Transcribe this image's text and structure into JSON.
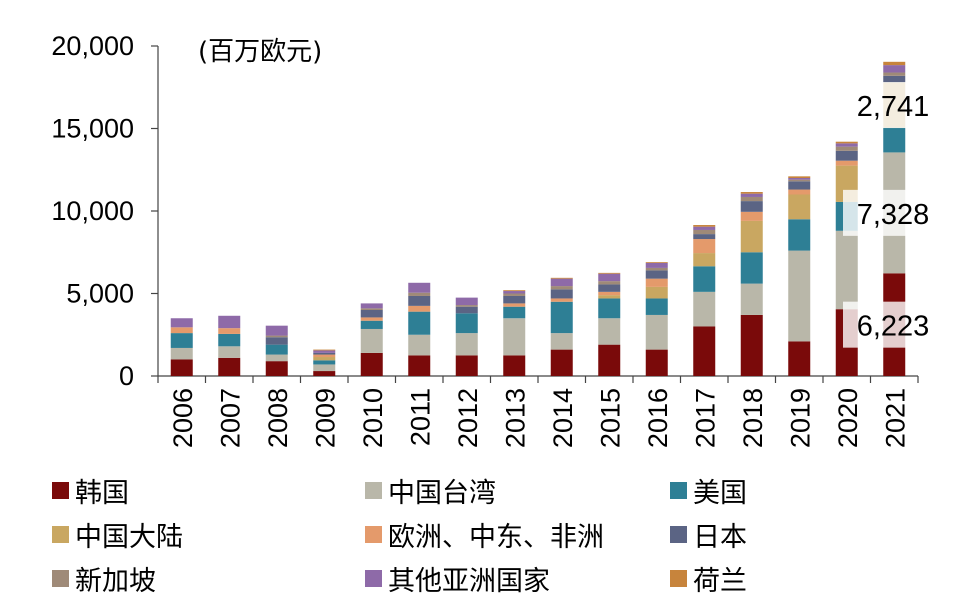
{
  "chart_data": {
    "type": "stacked-bar",
    "unit_label": "(百万欧元)",
    "ylim": [
      0,
      20000
    ],
    "y_ticks": [
      "0",
      "5,000",
      "10,000",
      "15,000",
      "20,000"
    ],
    "y_tick_values": [
      0,
      5000,
      10000,
      15000,
      20000
    ],
    "categories": [
      "2006",
      "2007",
      "2008",
      "2009",
      "2010",
      "2011",
      "2012",
      "2013",
      "2014",
      "2015",
      "2016",
      "2017",
      "2018",
      "2019",
      "2020",
      "2021"
    ],
    "series": [
      {
        "name": "韩国",
        "color": "#7a0a0a",
        "values": [
          1000,
          1100,
          900,
          300,
          1400,
          1250,
          1250,
          1250,
          1600,
          1900,
          1600,
          3000,
          3700,
          2100,
          4050,
          6223
        ]
      },
      {
        "name": "中国台湾",
        "color": "#b9b7a9",
        "values": [
          700,
          700,
          400,
          400,
          1450,
          1250,
          1350,
          2250,
          1000,
          1600,
          2100,
          2100,
          1900,
          5500,
          4750,
          7328
        ]
      },
      {
        "name": "美国",
        "color": "#2e7f95",
        "values": [
          900,
          750,
          600,
          250,
          500,
          1400,
          1200,
          700,
          1900,
          1200,
          1000,
          1550,
          1900,
          1900,
          1750,
          1500
        ]
      },
      {
        "name": "中国大陆",
        "color": "#c9a761",
        "values": [
          0,
          0,
          0,
          200,
          0,
          0,
          0,
          0,
          0,
          200,
          700,
          800,
          1900,
          1500,
          2200,
          2741
        ]
      },
      {
        "name": "欧洲、中东、非洲",
        "color": "#e49a6b",
        "values": [
          350,
          350,
          0,
          150,
          200,
          350,
          0,
          200,
          200,
          200,
          500,
          850,
          550,
          300,
          300,
          0
        ]
      },
      {
        "name": "日本",
        "color": "#5b6484",
        "values": [
          0,
          0,
          450,
          100,
          450,
          600,
          400,
          450,
          550,
          450,
          500,
          300,
          650,
          500,
          600,
          400
        ]
      },
      {
        "name": "新加坡",
        "color": "#9f8a78",
        "values": [
          0,
          0,
          100,
          0,
          100,
          200,
          100,
          150,
          200,
          200,
          150,
          250,
          250,
          100,
          250,
          200
        ]
      },
      {
        "name": "其他亚洲国家",
        "color": "#8e6aa8",
        "values": [
          550,
          750,
          600,
          150,
          300,
          600,
          450,
          150,
          450,
          450,
          300,
          200,
          200,
          100,
          200,
          450
        ]
      },
      {
        "name": "荷兰",
        "color": "#c7843c",
        "values": [
          0,
          0,
          0,
          50,
          0,
          0,
          0,
          50,
          50,
          50,
          50,
          100,
          100,
          100,
          100,
          200
        ]
      }
    ],
    "annotations": [
      {
        "text": "2,741",
        "category": "2021",
        "series": "中国大陆"
      },
      {
        "text": "7,328",
        "category": "2021",
        "series": "中国台湾"
      },
      {
        "text": "6,223",
        "category": "2021",
        "series": "韩国"
      }
    ],
    "legend": {
      "placement": "bottom",
      "columns": 3,
      "items": [
        "韩国",
        "中国台湾",
        "美国",
        "中国大陆",
        "欧洲、中东、非洲",
        "日本",
        "新加坡",
        "其他亚洲国家",
        "荷兰"
      ]
    }
  }
}
